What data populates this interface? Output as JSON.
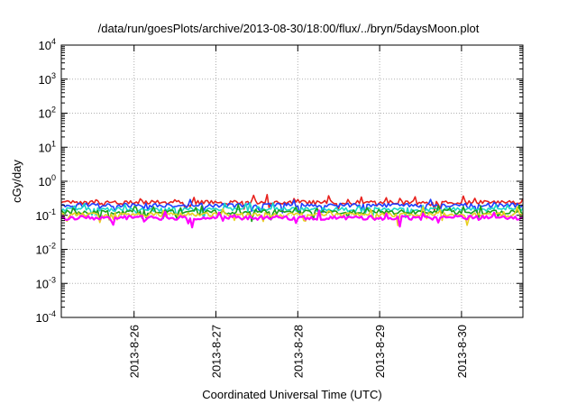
{
  "chart_data": {
    "type": "line",
    "title": "/data/run/goesPlots/archive/2013-08-30/18:00/flux/../bryn/5daysMoon.plot",
    "xlabel": "Coordinated Universal Time (UTC)",
    "ylabel": "cGy/day",
    "x_scale": "time",
    "y_scale": "log",
    "xlim": [
      "2013-08-25T02:40",
      "2013-08-30T18:00"
    ],
    "ylim": [
      0.0001,
      10000
    ],
    "x_ticks": [
      "2013-8-26",
      "2013-8-27",
      "2013-8-28",
      "2013-8-29",
      "2013-8-30"
    ],
    "y_ticks": [
      {
        "base": "10",
        "exp": "-4"
      },
      {
        "base": "10",
        "exp": "-3"
      },
      {
        "base": "10",
        "exp": "-2"
      },
      {
        "base": "10",
        "exp": "-1"
      },
      {
        "base": "10",
        "exp": "0"
      },
      {
        "base": "10",
        "exp": "1"
      },
      {
        "base": "10",
        "exp": "2"
      },
      {
        "base": "10",
        "exp": "3"
      },
      {
        "base": "10",
        "exp": "4"
      }
    ],
    "grid": true,
    "legend": "none",
    "series": [
      {
        "color": "#e8211d",
        "approx_level": 0.24
      },
      {
        "color": "#1e3cff",
        "approx_level": 0.2
      },
      {
        "color": "#18d8c8",
        "approx_level": 0.15
      },
      {
        "color": "#1aa01a",
        "approx_level": 0.125
      },
      {
        "color": "#e8d020",
        "approx_level": 0.105
      },
      {
        "color": "#ff00ff",
        "approx_level": 0.085
      }
    ]
  }
}
